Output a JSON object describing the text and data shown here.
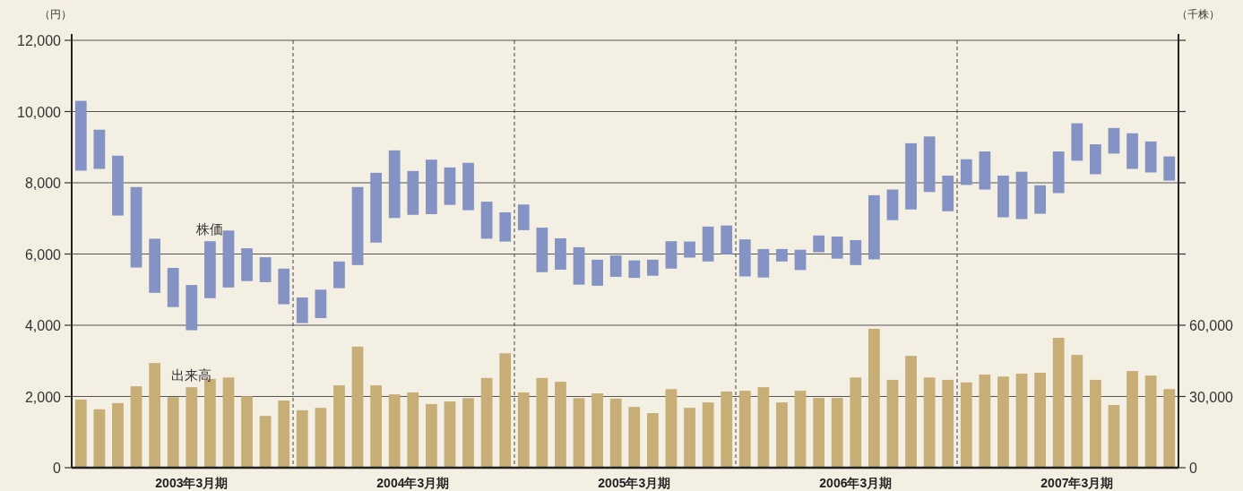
{
  "chart_data": {
    "type": "bar",
    "ylabel": "（円）",
    "y2label": "（千株）",
    "categories": [
      null,
      null,
      null,
      null,
      null,
      null,
      "2003年3月期",
      null,
      null,
      null,
      null,
      null,
      null,
      null,
      null,
      null,
      null,
      null,
      "2004年3月期",
      null,
      null,
      null,
      null,
      null,
      null,
      null,
      null,
      null,
      null,
      null,
      "2005年3月期",
      null,
      null,
      null,
      null,
      null,
      null,
      null,
      null,
      null,
      null,
      null,
      "2006年3月期",
      null,
      null,
      null,
      null,
      null,
      null,
      null,
      null,
      null,
      null,
      null,
      "2007年3月期",
      null,
      null,
      null,
      null,
      null
    ],
    "ylim": [
      0,
      12000
    ],
    "yticks": [
      0,
      {
        "value": 2000,
        "label": "2,000"
      },
      {
        "value": 4000,
        "label": "4,000"
      },
      {
        "value": 6000,
        "label": "6,000"
      },
      {
        "value": 8000,
        "label": "8,000"
      },
      {
        "value": 10000,
        "label": "10,000"
      },
      {
        "value": 12000,
        "label": "12,000"
      }
    ],
    "y2lim": [
      0,
      180000
    ],
    "y2ticks": [
      0,
      {
        "value": 30000,
        "label": "30,000"
      },
      {
        "value": 60000,
        "label": "60,000"
      },
      {
        "value": 90000,
        "label": null
      },
      {
        "value": 120000,
        "label": null
      },
      {
        "value": 150000,
        "label": null
      },
      {
        "value": 180000,
        "label": null
      }
    ],
    "grid": "y",
    "series": [
      {
        "name": "株価",
        "color": "#8593c4",
        "base": [
          8340,
          8390,
          7080,
          5620,
          4910,
          4510,
          3860,
          4760,
          5060,
          5240,
          5210,
          4590,
          4060,
          4200,
          5040,
          5690,
          6320,
          7010,
          7100,
          7120,
          7380,
          7230,
          6430,
          6350,
          6670,
          5490,
          5560,
          5140,
          5110,
          5360,
          5330,
          5390,
          5590,
          5900,
          5790,
          5990,
          5370,
          5340,
          5790,
          5550,
          6050,
          5870,
          5690,
          5850,
          6950,
          7250,
          7740,
          7200,
          7940,
          7810,
          7030,
          6980,
          7130,
          7710,
          8620,
          8240,
          8820,
          8390,
          8290,
          8060
        ],
        "values": [
          1960,
          1100,
          1680,
          2260,
          1520,
          1100,
          1270,
          1600,
          1600,
          920,
          700,
          1000,
          720,
          800,
          750,
          2190,
          1960,
          1900,
          1230,
          1530,
          1050,
          1330,
          1040,
          820,
          720,
          1250,
          880,
          1050,
          730,
          600,
          490,
          450,
          770,
          450,
          980,
          810,
          1040,
          800,
          350,
          570,
          470,
          620,
          700,
          1800,
          860,
          1860,
          1560,
          1000,
          720,
          1070,
          1170,
          1330,
          800,
          1170,
          1050,
          840,
          720,
          1000,
          870,
          680
        ]
      },
      {
        "name": "出来高",
        "color": "#c6ae76",
        "axis": "y2",
        "values": [
          28700,
          24600,
          27200,
          34300,
          44100,
          29700,
          33900,
          37400,
          38000,
          30100,
          21800,
          28300,
          24200,
          25200,
          34700,
          51000,
          34700,
          30900,
          31700,
          26800,
          27900,
          29300,
          37800,
          48200,
          31700,
          37800,
          36200,
          29300,
          31300,
          29100,
          25600,
          23000,
          33100,
          25200,
          27500,
          32100,
          32400,
          33900,
          27500,
          32400,
          29400,
          29400,
          38000,
          58500,
          37000,
          47100,
          38000,
          37000,
          35900,
          39200,
          38400,
          39600,
          40000,
          54700,
          47500,
          37000,
          26400,
          40700,
          38800,
          33100
        ]
      }
    ]
  }
}
